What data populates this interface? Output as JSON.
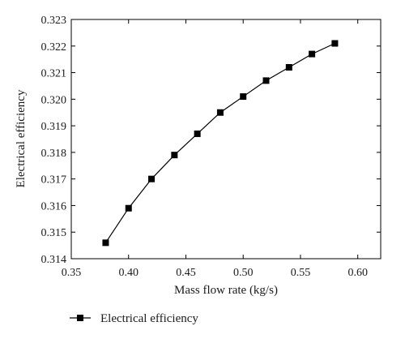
{
  "chart_data": {
    "type": "line",
    "title": "",
    "xlabel": "Mass flow rate (kg/s)",
    "ylabel": "Electrical efficiency",
    "xlim": [
      0.35,
      0.62
    ],
    "ylim": [
      0.314,
      0.323
    ],
    "x_ticks": [
      0.35,
      0.4,
      0.45,
      0.5,
      0.55,
      0.6
    ],
    "x_tick_labels": [
      "0.35",
      "0.40",
      "0.45",
      "0.50",
      "0.55",
      "0.60"
    ],
    "y_ticks": [
      0.314,
      0.315,
      0.316,
      0.317,
      0.318,
      0.319,
      0.32,
      0.321,
      0.322,
      0.323
    ],
    "y_tick_labels": [
      "0.314",
      "0.315",
      "0.316",
      "0.317",
      "0.318",
      "0.319",
      "0.320",
      "0.321",
      "0.322",
      "0.323"
    ],
    "grid": false,
    "legend_position": "bottom-left",
    "marker": "square",
    "series": [
      {
        "name": "Electrical efficiency",
        "color": "#000000",
        "x": [
          0.38,
          0.4,
          0.42,
          0.44,
          0.46,
          0.48,
          0.5,
          0.52,
          0.54,
          0.56,
          0.58
        ],
        "y": [
          0.3146,
          0.3159,
          0.317,
          0.3179,
          0.3187,
          0.3195,
          0.3201,
          0.3207,
          0.3212,
          0.3217,
          0.3221
        ]
      }
    ]
  }
}
